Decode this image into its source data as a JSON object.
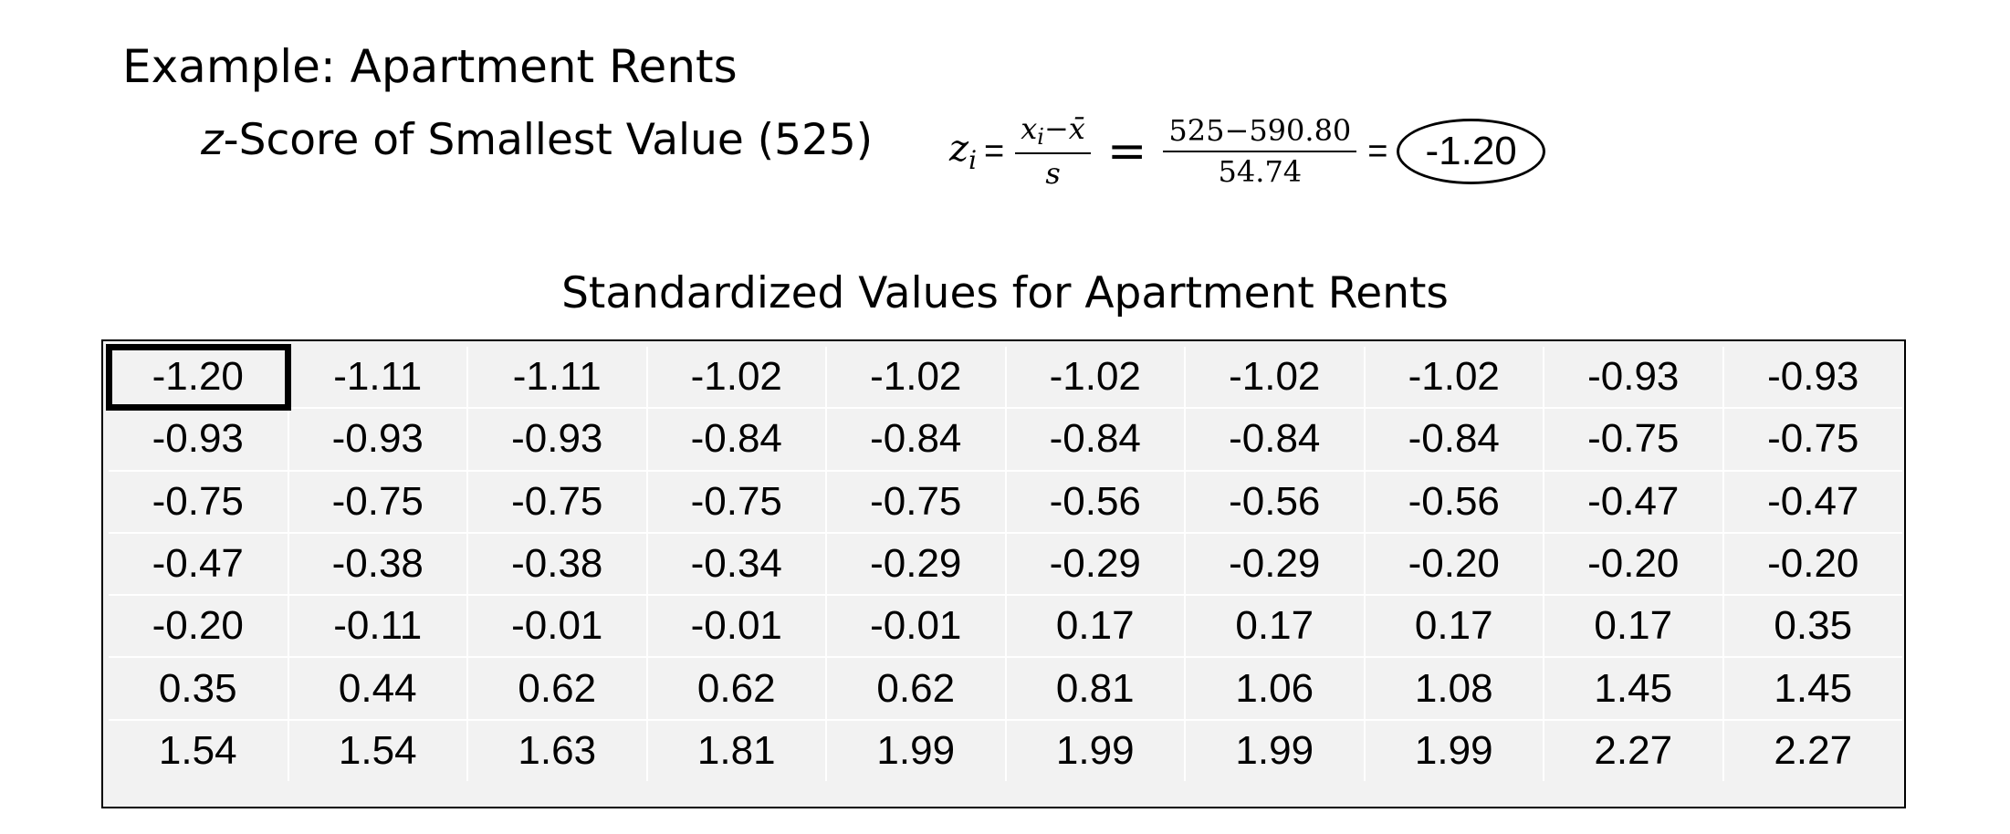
{
  "heading": "Example: Apartment Rents",
  "subheading": {
    "z": "z",
    "rest": "-Score of Smallest Value (525)"
  },
  "formula": {
    "lhs": "z",
    "lhs_sub": "i",
    "eq": "=",
    "num1_x": "x",
    "num1_sub": "i",
    "num1_rest": "−x̄",
    "den1": "s",
    "num2": "525−590.80",
    "den2": "54.74",
    "result": "-1.20"
  },
  "table": {
    "title": "Standardized Values for Apartment Rents",
    "highlighted": "0.0",
    "rows": [
      [
        "-1.20",
        "-1.11",
        "-1.11",
        "-1.02",
        "-1.02",
        "-1.02",
        "-1.02",
        "-1.02",
        "-0.93",
        "-0.93"
      ],
      [
        "-0.93",
        "-0.93",
        "-0.93",
        "-0.84",
        "-0.84",
        "-0.84",
        "-0.84",
        "-0.84",
        "-0.75",
        "-0.75"
      ],
      [
        "-0.75",
        "-0.75",
        "-0.75",
        "-0.75",
        "-0.75",
        "-0.56",
        "-0.56",
        "-0.56",
        "-0.47",
        "-0.47"
      ],
      [
        "-0.47",
        "-0.38",
        "-0.38",
        "-0.34",
        "-0.29",
        "-0.29",
        "-0.29",
        "-0.20",
        "-0.20",
        "-0.20"
      ],
      [
        "-0.20",
        "-0.11",
        "-0.01",
        "-0.01",
        "-0.01",
        "0.17",
        "0.17",
        "0.17",
        "0.17",
        "0.35"
      ],
      [
        "0.35",
        "0.44",
        "0.62",
        "0.62",
        "0.62",
        "0.81",
        "1.06",
        "1.08",
        "1.45",
        "1.45"
      ],
      [
        "1.54",
        "1.54",
        "1.63",
        "1.81",
        "1.99",
        "1.99",
        "1.99",
        "1.99",
        "2.27",
        "2.27"
      ]
    ]
  }
}
